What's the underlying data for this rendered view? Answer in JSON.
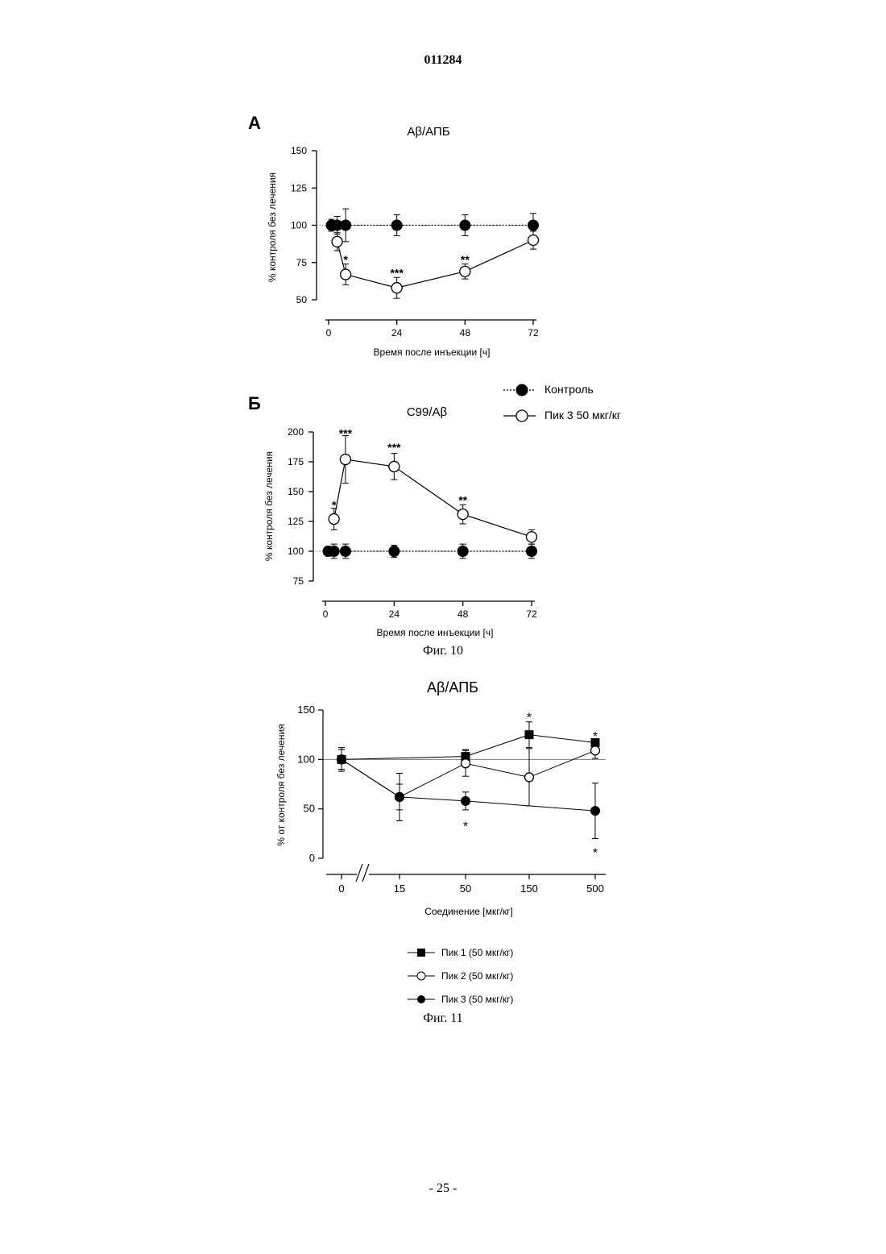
{
  "page": {
    "doc_number": "011284",
    "page_number": "- 25 -",
    "fig10_caption": "Фиг. 10",
    "fig11_caption": "Фиг. 11"
  },
  "fig10_legend": [
    {
      "label": "Контроль",
      "marker": "filled-circle",
      "line": "dotted"
    },
    {
      "label": "Пик 3 50 мкг/кг",
      "marker": "open-circle",
      "line": "solid"
    }
  ],
  "fig11_legend": [
    {
      "label": "Пик 1 (50 мкг/кг)",
      "marker": "filled-square"
    },
    {
      "label": "Пик 2 (50 мкг/кг)",
      "marker": "open-circle"
    },
    {
      "label": "Пик 3 (50 мкг/кг)",
      "marker": "filled-circle"
    }
  ],
  "chart_data": [
    {
      "id": "A",
      "type": "line",
      "panel_label": "А",
      "title": "Аβ/АПБ",
      "xlabel": "Время после инъекции [ч]",
      "ylabel": "% контроля без лечения",
      "xlim": [
        0,
        72
      ],
      "ylim": [
        50,
        150
      ],
      "xticks": [
        0,
        24,
        48,
        72
      ],
      "yticks": [
        50,
        75,
        100,
        125,
        150
      ],
      "reference_line": 100,
      "series": [
        {
          "name": "Контроль",
          "marker": "filled-circle",
          "line": "dotted",
          "x": [
            1,
            3,
            6,
            24,
            48,
            72
          ],
          "y": [
            100,
            100,
            100,
            100,
            100,
            100
          ],
          "err": [
            4,
            6,
            11,
            7,
            7,
            8
          ]
        },
        {
          "name": "Пик 3 50 мкг/кг",
          "marker": "open-circle",
          "line": "solid",
          "x": [
            3,
            6,
            24,
            48,
            72
          ],
          "y": [
            89,
            67,
            58,
            69,
            90
          ],
          "err": [
            6,
            7,
            7,
            5,
            6
          ]
        }
      ],
      "annotations": [
        {
          "x": 6,
          "y": 77,
          "text": "*"
        },
        {
          "x": 24,
          "y": 68,
          "text": "***"
        },
        {
          "x": 48,
          "y": 77,
          "text": "**"
        }
      ]
    },
    {
      "id": "B",
      "type": "line",
      "panel_label": "Б",
      "title": "C99/Аβ",
      "xlabel": "Время после инъекции [ч]",
      "ylabel": "% контроля без лечения",
      "xlim": [
        0,
        72
      ],
      "ylim": [
        75,
        200
      ],
      "xticks": [
        0,
        24,
        48,
        72
      ],
      "yticks": [
        75,
        100,
        125,
        150,
        175,
        200
      ],
      "reference_line": 100,
      "series": [
        {
          "name": "Контроль",
          "marker": "filled-circle",
          "line": "dotted",
          "x": [
            1,
            3,
            7,
            24,
            48,
            72
          ],
          "y": [
            100,
            100,
            100,
            100,
            100,
            100
          ],
          "err": [
            4,
            6,
            6,
            5,
            6,
            6
          ]
        },
        {
          "name": "Пик 3 50 мкг/кг",
          "marker": "open-circle",
          "line": "solid",
          "x": [
            3,
            7,
            24,
            48,
            72
          ],
          "y": [
            127,
            177,
            171,
            131,
            112
          ],
          "err": [
            9,
            20,
            11,
            8,
            6
          ]
        }
      ],
      "annotations": [
        {
          "x": 3,
          "y": 139,
          "text": "*"
        },
        {
          "x": 7,
          "y": 199,
          "text": "***"
        },
        {
          "x": 24,
          "y": 187,
          "text": "***"
        },
        {
          "x": 48,
          "y": 143,
          "text": "**"
        }
      ]
    },
    {
      "id": "C",
      "type": "line",
      "title": "Аβ/АПБ",
      "xlabel": "Соединение  [мкг/кг]",
      "ylabel": "% от контроля без лечения",
      "ylim": [
        0,
        150
      ],
      "categories": [
        "0",
        "15",
        "50",
        "150",
        "500"
      ],
      "yticks": [
        0,
        50,
        100,
        150
      ],
      "reference_line": 100,
      "axis_break": "//",
      "series": [
        {
          "name": "Пик 1 (50 мкг/кг)",
          "marker": "filled-square",
          "values": [
            100,
            null,
            103,
            125,
            117
          ],
          "err": [
            10,
            null,
            7,
            13,
            4
          ]
        },
        {
          "name": "Пик 2 (50 мкг/кг)",
          "marker": "open-circle",
          "values": [
            100,
            62,
            96,
            82,
            109
          ],
          "err": [
            12,
            13,
            13,
            29,
            8
          ]
        },
        {
          "name": "Пик 3 (50 мкг/кг)",
          "marker": "filled-circle",
          "values": [
            100,
            62,
            58,
            null,
            48
          ],
          "err": [
            10,
            24,
            9,
            null,
            28
          ]
        }
      ],
      "annotations": [
        {
          "category": "150",
          "y": 143,
          "text": "*"
        },
        {
          "category": "500",
          "y": 124,
          "text": "*"
        },
        {
          "category": "50",
          "y": 33,
          "text": "*"
        },
        {
          "category": "500",
          "y": 6,
          "text": "*"
        }
      ]
    }
  ]
}
